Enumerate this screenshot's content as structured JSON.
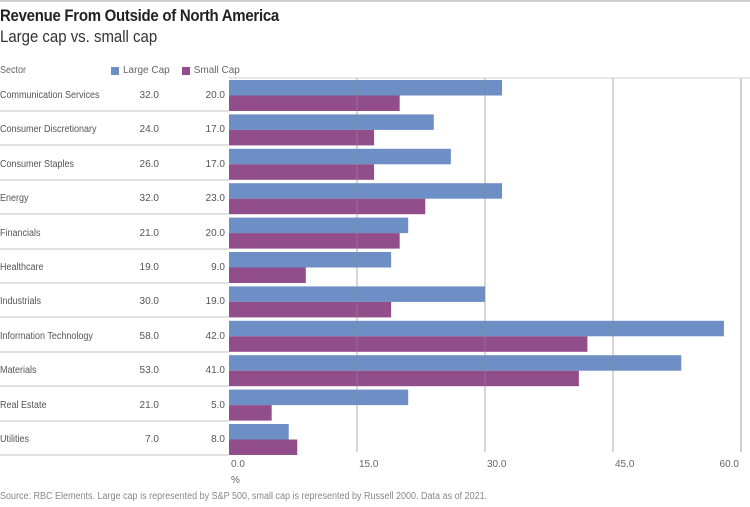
{
  "title": "Revenue From Outside of North America",
  "subtitle": "Large cap vs. small cap",
  "table_header": {
    "sector": "Sector"
  },
  "legend": [
    {
      "label": "Large Cap",
      "color": "#6d8fc6"
    },
    {
      "label": "Small Cap",
      "color": "#924d8b"
    }
  ],
  "rows": [
    {
      "sector": "Communication Services",
      "large": "32.0",
      "small": "20.0"
    },
    {
      "sector": "Consumer Discretionary",
      "large": "24.0",
      "small": "17.0"
    },
    {
      "sector": "Consumer Staples",
      "large": "26.0",
      "small": "17.0"
    },
    {
      "sector": "Energy",
      "large": "32.0",
      "small": "23.0"
    },
    {
      "sector": "Financials",
      "large": "21.0",
      "small": "20.0"
    },
    {
      "sector": "Healthcare",
      "large": "19.0",
      "small": "9.0"
    },
    {
      "sector": "Industrials",
      "large": "30.0",
      "small": "19.0"
    },
    {
      "sector": "Information Technology",
      "large": "58.0",
      "small": "42.0"
    },
    {
      "sector": "Materials",
      "large": "53.0",
      "small": "41.0"
    },
    {
      "sector": "Real Estate",
      "large": "21.0",
      "small": "5.0"
    },
    {
      "sector": "Utilities",
      "large": "7.0",
      "small": "8.0"
    }
  ],
  "source": "Source: RBC Elements. Large cap is represented by S&P 500, small cap is represented by Russell 2000. Data as of 2021.",
  "chart_data": {
    "type": "bar",
    "orientation": "horizontal",
    "title": "Revenue From Outside of North America",
    "subtitle": "Large cap vs. small cap",
    "categories": [
      "Communication Services",
      "Consumer Discretionary",
      "Consumer Staples",
      "Energy",
      "Financials",
      "Healthcare",
      "Industrials",
      "Information Technology",
      "Materials",
      "Real Estate",
      "Utilities"
    ],
    "series": [
      {
        "name": "Large Cap",
        "color": "#6d8fc6",
        "values": [
          32,
          24,
          26,
          32,
          21,
          19,
          30,
          58,
          53,
          21,
          7
        ]
      },
      {
        "name": "Small Cap",
        "color": "#924d8b",
        "values": [
          20,
          17,
          17,
          23,
          20,
          9,
          19,
          42,
          41,
          5,
          8
        ]
      }
    ],
    "xlabel": "%",
    "ylabel": "Sector",
    "xlim": [
      0,
      60
    ],
    "xticks": [
      "0.0",
      "15.0",
      "30.0",
      "45.0",
      "60.0"
    ],
    "grid": true,
    "legend_position": "top"
  }
}
